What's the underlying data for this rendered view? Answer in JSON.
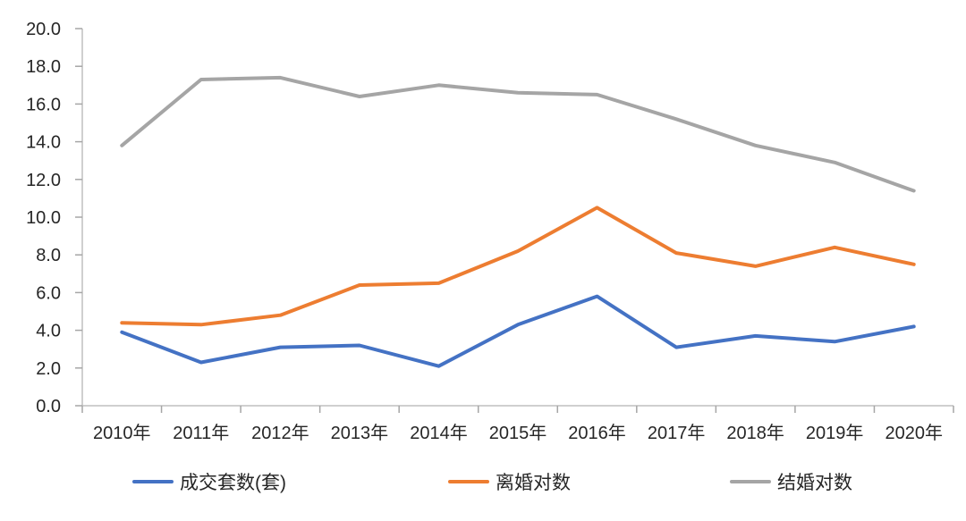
{
  "chart_data": {
    "type": "line",
    "title": "",
    "xlabel": "",
    "ylabel": "",
    "categories": [
      "2010年",
      "2011年",
      "2012年",
      "2013年",
      "2014年",
      "2015年",
      "2016年",
      "2017年",
      "2018年",
      "2019年",
      "2020年"
    ],
    "series": [
      {
        "id": "deal-count",
        "name": "成交套数(套)",
        "color": "#4472C4",
        "values": [
          3.9,
          2.3,
          3.1,
          3.2,
          2.1,
          4.3,
          5.8,
          3.1,
          3.7,
          3.4,
          4.2
        ]
      },
      {
        "id": "divorce-pairs",
        "name": "离婚对数",
        "color": "#ED7D31",
        "values": [
          4.4,
          4.3,
          4.8,
          6.4,
          6.5,
          8.2,
          10.5,
          8.1,
          7.4,
          8.4,
          7.5
        ]
      },
      {
        "id": "marriage-pairs",
        "name": "结婚对数",
        "color": "#A5A5A5",
        "values": [
          13.8,
          17.3,
          17.4,
          16.4,
          17.0,
          16.6,
          16.5,
          15.2,
          13.8,
          12.9,
          11.4
        ]
      }
    ],
    "ylim": [
      0,
      20
    ],
    "ytick_step": 2,
    "ytick_labels": [
      "0.0",
      "2.0",
      "4.0",
      "6.0",
      "8.0",
      "10.0",
      "12.0",
      "14.0",
      "16.0",
      "18.0",
      "20.0"
    ],
    "grid": false,
    "legend_position": "bottom",
    "line_width": 4,
    "axis_color": "#BFBFBF",
    "tick_color": "#A6A6A6",
    "text_color": "#262626"
  }
}
